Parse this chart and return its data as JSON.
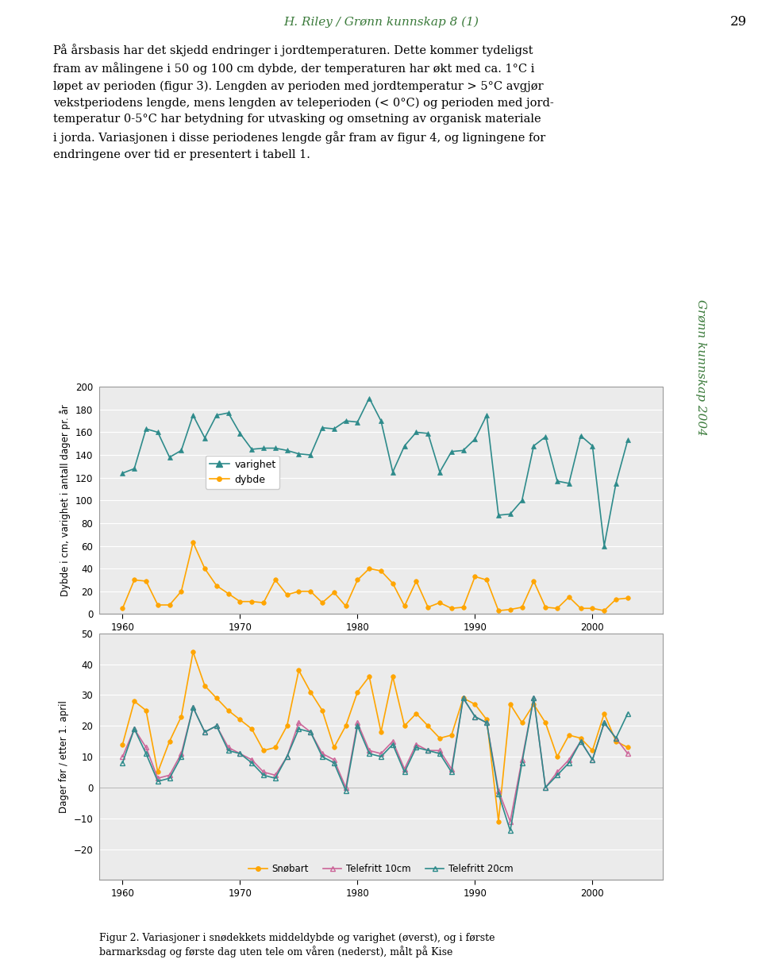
{
  "top_chart": {
    "years": [
      1960,
      1961,
      1962,
      1963,
      1964,
      1965,
      1966,
      1967,
      1968,
      1969,
      1970,
      1971,
      1972,
      1973,
      1974,
      1975,
      1976,
      1977,
      1978,
      1979,
      1980,
      1981,
      1982,
      1983,
      1984,
      1985,
      1986,
      1987,
      1988,
      1989,
      1990,
      1991,
      1992,
      1993,
      1994,
      1995,
      1996,
      1997,
      1998,
      1999,
      2000,
      2001,
      2002,
      2003
    ],
    "varighet": [
      124,
      128,
      163,
      160,
      138,
      144,
      175,
      155,
      175,
      177,
      159,
      145,
      146,
      146,
      144,
      141,
      140,
      164,
      163,
      170,
      169,
      190,
      170,
      125,
      148,
      160,
      159,
      125,
      143,
      144,
      154,
      175,
      87,
      88,
      100,
      148,
      156,
      117,
      115,
      157,
      148,
      60,
      115,
      153
    ],
    "dybde": [
      5,
      30,
      29,
      8,
      8,
      20,
      63,
      40,
      25,
      18,
      11,
      11,
      10,
      30,
      17,
      20,
      20,
      10,
      19,
      7,
      30,
      40,
      38,
      27,
      7,
      29,
      6,
      10,
      5,
      6,
      33,
      30,
      3,
      4,
      6,
      29,
      6,
      5,
      15,
      5,
      5,
      3,
      13,
      14
    ],
    "varighet_color": "#2E8B8B",
    "dybde_color": "#FFA500",
    "ylabel": "Dybde i cm, varighet i antall dager pr. år",
    "ylim": [
      0,
      200
    ],
    "yticks": [
      0,
      20,
      40,
      60,
      80,
      100,
      120,
      140,
      160,
      180,
      200
    ],
    "xlim": [
      1958,
      2006
    ],
    "xticks": [
      1960,
      1970,
      1980,
      1990,
      2000
    ]
  },
  "bottom_chart": {
    "years": [
      1960,
      1961,
      1962,
      1963,
      1964,
      1965,
      1966,
      1967,
      1968,
      1969,
      1970,
      1971,
      1972,
      1973,
      1974,
      1975,
      1976,
      1977,
      1978,
      1979,
      1980,
      1981,
      1982,
      1983,
      1984,
      1985,
      1986,
      1987,
      1988,
      1989,
      1990,
      1991,
      1992,
      1993,
      1994,
      1995,
      1996,
      1997,
      1998,
      1999,
      2000,
      2001,
      2002,
      2003
    ],
    "snobart": [
      14,
      28,
      25,
      5,
      15,
      23,
      44,
      33,
      29,
      25,
      22,
      19,
      12,
      13,
      20,
      38,
      31,
      25,
      13,
      20,
      31,
      36,
      18,
      36,
      20,
      24,
      20,
      16,
      17,
      29,
      27,
      22,
      -11,
      27,
      21,
      27,
      21,
      10,
      17,
      16,
      12,
      24,
      15,
      13
    ],
    "telefritt10": [
      10,
      19,
      13,
      3,
      4,
      11,
      26,
      18,
      20,
      13,
      11,
      9,
      5,
      4,
      10,
      21,
      18,
      11,
      9,
      0,
      21,
      12,
      11,
      15,
      6,
      14,
      12,
      12,
      6,
      29,
      23,
      21,
      -1,
      -11,
      9,
      29,
      0,
      5,
      9,
      15,
      9,
      21,
      16,
      11
    ],
    "telefritt20": [
      8,
      19,
      11,
      2,
      3,
      10,
      26,
      18,
      20,
      12,
      11,
      8,
      4,
      3,
      10,
      19,
      18,
      10,
      8,
      -1,
      20,
      11,
      10,
      14,
      5,
      13,
      12,
      11,
      5,
      29,
      23,
      21,
      -2,
      -14,
      8,
      29,
      0,
      4,
      8,
      15,
      9,
      21,
      16,
      24
    ],
    "snobart_color": "#FFA500",
    "telefritt10_color": "#CC6699",
    "telefritt20_color": "#2E8B8B",
    "ylabel": "Dager før / etter 1. april",
    "ylim": [
      -30,
      50
    ],
    "yticks": [
      -20,
      -10,
      0,
      10,
      20,
      30,
      40,
      50
    ],
    "xlim": [
      1958,
      2006
    ],
    "xticks": [
      1960,
      1970,
      1980,
      1990,
      2000
    ]
  },
  "header_title": "H. Riley / Grønn kunnskap 8 (1)",
  "header_page": "29",
  "header_color": "#3a7a3a",
  "body_text": "På årsbasis har det skjedd endringer i jordtemperaturen. Dette kommer tydeligst\nfram av målingene i 50 og 100 cm dybde, der temperaturen har økt med ca. 1°C i\nløpet av perioden (figur 3). Lengden av perioden med jordtemperatur > 5°C avgjør\nvekstperiodens lengde, mens lengden av teleperioden (< 0°C) og perioden med jord-\ntemperatur 0-5°C har betydning for utvasking og omsetning av organisk materiale\ni jorda. Variasjonen i disse periodenes lengde går fram av figur 4, og ligningene for\nendringene over tid er presentert i tabell 1.",
  "sidebar_text": "Grønn kunnskap 2004",
  "fig_caption": "Figur 2. Variasjoner i snødekkets middeldybde og varighet (øverst), og i første\nbarmarksdag og første dag uten tele om våren (nederst), målt på Kise",
  "plot_bg": "#EBEBEB",
  "chart_frame_color": "#BBBBBB"
}
